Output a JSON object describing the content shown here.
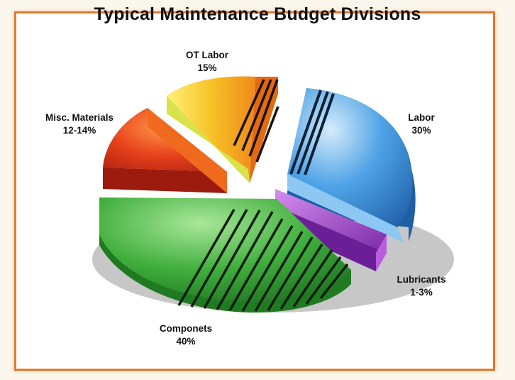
{
  "chart_data": {
    "type": "pie",
    "title": "Typical  Maintenance Budget Divisions",
    "slices": [
      {
        "label": "Labor",
        "value_text": "30%",
        "value": 30,
        "color": "#3b8fd8"
      },
      {
        "label": "Lubricants",
        "value_text": "1-3%",
        "value": 2,
        "color": "#9a3ec8"
      },
      {
        "label": "Componets",
        "value_text": "40%",
        "value": 40,
        "color": "#37a33a"
      },
      {
        "label": "Misc. Materials",
        "value_text": "12-14%",
        "value": 13,
        "color": "#e03a1c"
      },
      {
        "label": "OT Labor",
        "value_text": "15%",
        "value": 15,
        "color": "#f2c12a"
      }
    ],
    "style": "exploded 3D pie with diagonal hatch stripes",
    "grid": false,
    "legend": "none"
  }
}
